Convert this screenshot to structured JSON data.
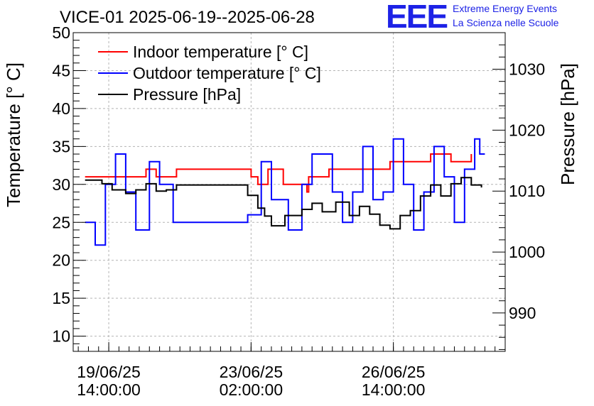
{
  "chart_data": {
    "type": "line",
    "title": "VICE-01 2025-06-19--2025-06-28",
    "logo": {
      "mark": "EEE",
      "line1": "Extreme Energy Events",
      "line2": "La Scienza nelle Scuole",
      "color": "#1d22e6"
    },
    "ylabel": "Temperature [° C]",
    "y2label": "Pressure [hPa]",
    "ylim": [
      8,
      50
    ],
    "y2lim": [
      983.7,
      1036
    ],
    "xlim": [
      "2025-06-18 17:00",
      "2025-06-29 08:00"
    ],
    "yticks": [
      "10",
      "15",
      "20",
      "25",
      "30",
      "35",
      "40",
      "45",
      "50"
    ],
    "y2ticks": [
      "990",
      "1000",
      "1010",
      "1020",
      "1030"
    ],
    "xticks": [
      {
        "date": "19/06/25",
        "time": "14:00:00",
        "x": "2025-06-19 14:00"
      },
      {
        "date": "23/06/25",
        "time": "02:00:00",
        "x": "2025-06-23 02:00"
      },
      {
        "date": "26/06/25",
        "time": "14:00:00",
        "x": "2025-06-26 14:00"
      }
    ],
    "grid": true,
    "legend_position": "top-left",
    "series": [
      {
        "name": "Indoor temperature [° C]",
        "axis": "left",
        "color": "#ff0000",
        "x": [
          "2025-06-19 00:00",
          "2025-06-19 18:00",
          "2025-06-20 06:00",
          "2025-06-20 12:00",
          "2025-06-20 18:00",
          "2025-06-21 00:00",
          "2025-06-21 06:00",
          "2025-06-23 02:00",
          "2025-06-23 06:00",
          "2025-06-23 12:00",
          "2025-06-23 21:00",
          "2025-06-24 10:00",
          "2025-06-24 11:00",
          "2025-06-24 12:00",
          "2025-06-25 00:00",
          "2025-06-25 18:00",
          "2025-06-26 00:00",
          "2025-06-26 12:00",
          "2025-06-27 06:00",
          "2025-06-27 12:00",
          "2025-06-28 00:00",
          "2025-06-28 10:00",
          "2025-06-28 12:00"
        ],
        "y": [
          31,
          31,
          31,
          32,
          31,
          31,
          32,
          31,
          30,
          32,
          30,
          30,
          29,
          31,
          32,
          32,
          32,
          33,
          33,
          34,
          33,
          33,
          34
        ]
      },
      {
        "name": "Outdoor temperature [° C]",
        "axis": "left",
        "color": "#0000ff",
        "x": [
          "2025-06-19 00:00",
          "2025-06-19 06:00",
          "2025-06-19 12:00",
          "2025-06-19 18:00",
          "2025-06-20 00:00",
          "2025-06-20 06:00",
          "2025-06-20 14:00",
          "2025-06-20 20:00",
          "2025-06-21 04:00",
          "2025-06-23 00:00",
          "2025-06-23 08:00",
          "2025-06-23 14:00",
          "2025-06-24 00:00",
          "2025-06-24 08:00",
          "2025-06-24 14:00",
          "2025-06-25 02:00",
          "2025-06-25 08:00",
          "2025-06-25 14:00",
          "2025-06-25 20:00",
          "2025-06-26 02:00",
          "2025-06-26 08:00",
          "2025-06-26 14:00",
          "2025-06-26 20:00",
          "2025-06-27 02:00",
          "2025-06-27 08:00",
          "2025-06-27 14:00",
          "2025-06-27 20:00",
          "2025-06-28 02:00",
          "2025-06-28 08:00",
          "2025-06-28 14:00",
          "2025-06-28 17:00",
          "2025-06-28 20:00"
        ],
        "y": [
          25,
          22,
          30,
          34,
          29,
          24,
          33,
          30,
          25,
          26,
          33,
          28,
          24,
          30,
          34,
          29,
          25,
          29,
          35,
          28,
          29,
          36,
          30,
          24,
          29,
          35,
          31,
          25,
          32,
          36,
          34,
          34
        ]
      },
      {
        "name": "Pressure [hPa]",
        "axis": "right",
        "color": "#000000",
        "x": [
          "2025-06-19 00:00",
          "2025-06-19 06:00",
          "2025-06-19 10:00",
          "2025-06-19 16:00",
          "2025-06-20 00:00",
          "2025-06-20 06:00",
          "2025-06-20 12:00",
          "2025-06-20 18:00",
          "2025-06-21 00:00",
          "2025-06-21 06:00",
          "2025-06-23 00:00",
          "2025-06-23 06:00",
          "2025-06-23 10:00",
          "2025-06-23 14:00",
          "2025-06-23 22:00",
          "2025-06-24 08:00",
          "2025-06-24 14:00",
          "2025-06-24 20:00",
          "2025-06-25 04:00",
          "2025-06-25 12:00",
          "2025-06-25 18:00",
          "2025-06-26 00:00",
          "2025-06-26 06:00",
          "2025-06-26 12:00",
          "2025-06-26 18:00",
          "2025-06-27 00:00",
          "2025-06-27 06:00",
          "2025-06-27 12:00",
          "2025-06-27 18:00",
          "2025-06-28 00:00",
          "2025-06-28 06:00",
          "2025-06-28 12:00",
          "2025-06-28 18:00"
        ],
        "y": [
          1011.8,
          1011.8,
          1011.2,
          1010.2,
          1009.6,
          1010.2,
          1011.2,
          1010.0,
          1010.2,
          1011.0,
          1009.3,
          1007.2,
          1005.9,
          1004.3,
          1006.0,
          1007.0,
          1008.0,
          1006.6,
          1008.2,
          1006.0,
          1007.5,
          1006.2,
          1004.4,
          1003.8,
          1006.0,
          1006.8,
          1009.2,
          1011.0,
          1009.2,
          1011.2,
          1012.2,
          1011.0,
          1010.6
        ]
      }
    ]
  }
}
